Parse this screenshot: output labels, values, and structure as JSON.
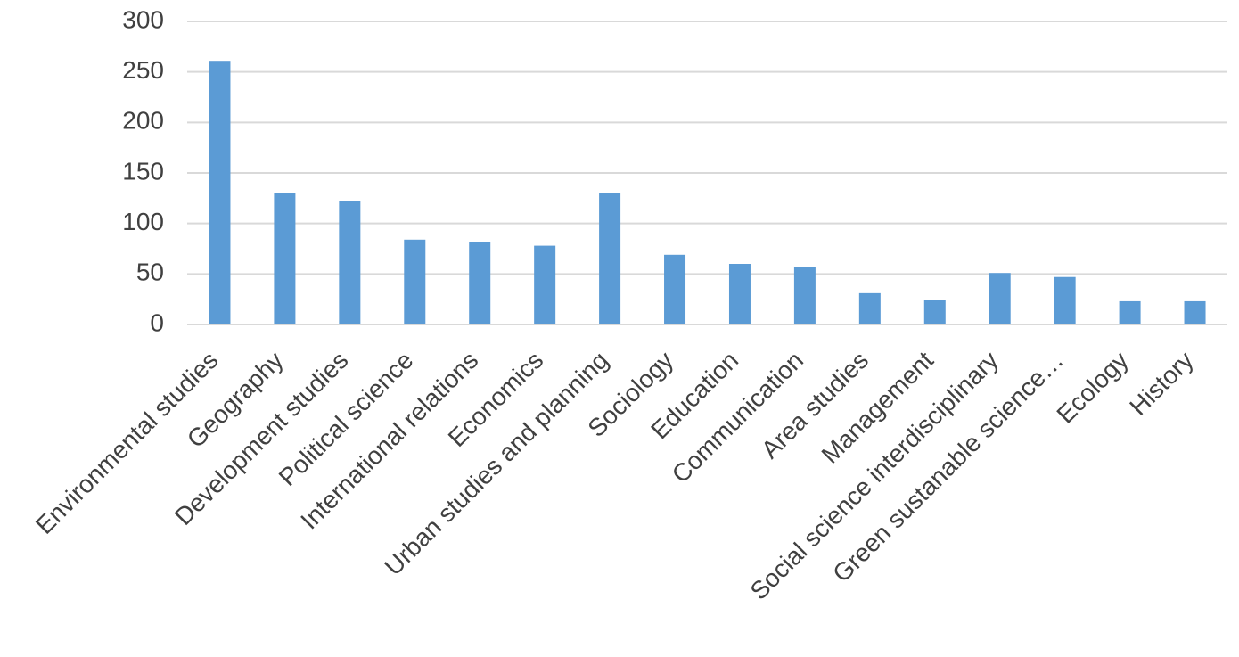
{
  "chart_data": {
    "type": "bar",
    "title": "",
    "xlabel": "",
    "ylabel": "",
    "ylim": [
      0,
      300
    ],
    "yticks": [
      0,
      50,
      100,
      150,
      200,
      250,
      300
    ],
    "grid": true,
    "legend": "none",
    "bar_color": "#5b9bd5",
    "categories": [
      "Environmental studies",
      "Geography",
      "Development studies",
      "Political science",
      "International relations",
      "Economics",
      "Urban studies and planning",
      "Sociology",
      "Education",
      "Communication",
      "Area studies",
      "Management",
      "Social science interdisciplinary",
      "Green sustanable science…",
      "Ecology",
      "History"
    ],
    "values": [
      261,
      130,
      122,
      84,
      82,
      78,
      130,
      69,
      60,
      57,
      31,
      24,
      51,
      47,
      23,
      23
    ]
  }
}
